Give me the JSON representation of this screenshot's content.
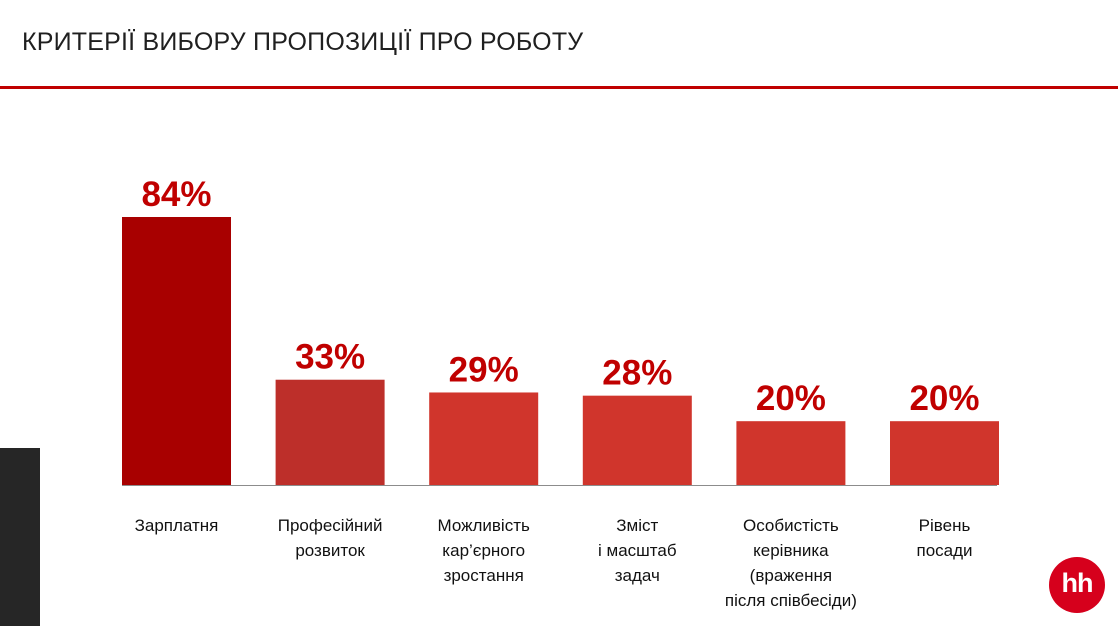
{
  "header": {
    "title": "КРИТЕРІЇ ВИБОРУ ПРОПОЗИЦІЇ ПРО РОБОТУ"
  },
  "logo": {
    "text": "hh"
  },
  "colors": {
    "accent": "#c00000",
    "bar_primary": "#a80000",
    "bar_secondary": "#bd2f2a",
    "bar_other": "#d0352c",
    "value_text": "#c00000"
  },
  "chart_data": {
    "type": "bar",
    "title": "",
    "xlabel": "",
    "ylabel": "",
    "ylim": [
      0,
      84
    ],
    "grid": false,
    "categories": [
      "Зарплатня",
      "Професійний\nрозвиток",
      "Можливість\nкар’єрного\nзростання",
      "Зміст\nі масштаб\nзадач",
      "Особистість\nкерівника\n(враження\nпісля співбесіди)",
      "Рівень\nпосади"
    ],
    "values": [
      84,
      33,
      29,
      28,
      20,
      20
    ],
    "value_labels": [
      "84%",
      "33%",
      "29%",
      "28%",
      "20%",
      "20%"
    ]
  }
}
